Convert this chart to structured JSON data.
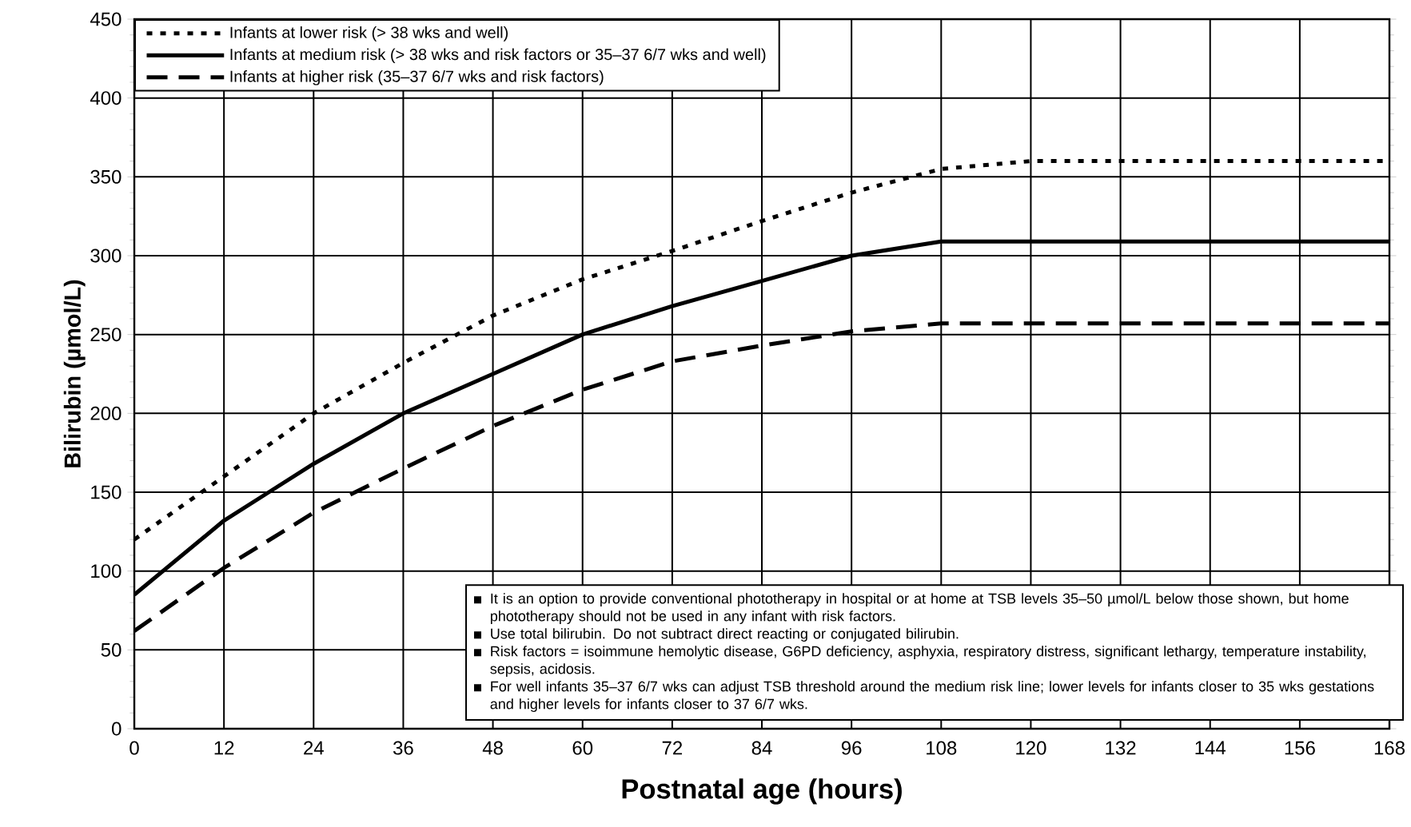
{
  "chart_data": {
    "type": "line",
    "xlabel": "Postnatal age (hours)",
    "ylabel": "Bilirubin (µmol/L)",
    "series": [
      {
        "name": "Infants at lower risk (> 38 wks and well)",
        "color": "#000000",
        "line_style": "dotted",
        "x": [
          0,
          12,
          24,
          36,
          48,
          60,
          72,
          84,
          96,
          108,
          120,
          168
        ],
        "values": [
          120,
          160,
          200,
          232,
          262,
          285,
          303,
          322,
          340,
          355,
          360,
          360
        ]
      },
      {
        "name": "Infants at medium risk (> 38 wks and risk factors or 35–37 6/7 wks and well)",
        "color": "#000000",
        "line_style": "solid",
        "x": [
          0,
          12,
          18,
          24,
          36,
          48,
          60,
          72,
          84,
          96,
          108,
          168
        ],
        "values": [
          85,
          132,
          150,
          168,
          200,
          225,
          250,
          268,
          284,
          300,
          309,
          309
        ]
      },
      {
        "name": "Infants at higher risk (35–37 6/7 wks and risk factors)",
        "color": "#000000",
        "line_style": "dashed",
        "x": [
          0,
          12,
          24,
          36,
          48,
          60,
          72,
          84,
          96,
          108,
          168
        ],
        "values": [
          62,
          102,
          137,
          165,
          192,
          215,
          233,
          243,
          252,
          257,
          257
        ]
      }
    ],
    "xlim": [
      0,
      168
    ],
    "ylim": [
      0,
      450
    ],
    "xticks": [
      0,
      12,
      24,
      36,
      48,
      60,
      72,
      84,
      96,
      108,
      120,
      132,
      144,
      156,
      168
    ],
    "yticks": [
      0,
      50,
      100,
      150,
      200,
      250,
      300,
      350,
      400,
      450
    ],
    "grid": true,
    "legend": "top left",
    "annotations": [
      "It is an option to provide conventional phototherapy in hospital or at home at TSB levels 35–50 µmol/L below those shown, but home phototherapy should not be used in any infant with risk factors.",
      "Use total bilirubin. Do not subtract direct reacting or conjugated bilirubin.",
      "Risk factors = isoimmune hemolytic disease, G6PD deficiency, asphyxia, respiratory distress, significant lethargy, temperature instability, sepsis, acidosis.",
      "For well infants 35–37 6/7 wks can adjust TSB threshold around the medium risk line; lower levels for infants closer to 35 wks gestations and higher levels for infants closer to 37 6/7 wks."
    ]
  }
}
